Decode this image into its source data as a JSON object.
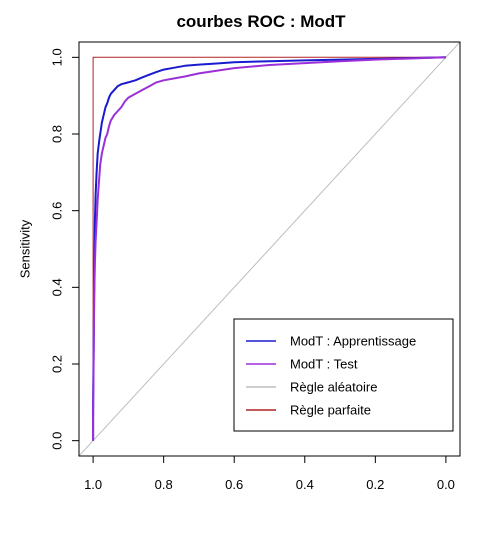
{
  "chart_data": {
    "type": "line",
    "title": "courbes ROC : ModT",
    "xlabel": "",
    "ylabel": "Sensitivity",
    "x_reversed": true,
    "xlim": [
      1.04,
      -0.04
    ],
    "ylim": [
      -0.04,
      1.04
    ],
    "x_ticks": [
      1.0,
      0.8,
      0.6,
      0.4,
      0.2,
      0.0
    ],
    "x_tick_labels": [
      "1.0",
      "0.8",
      "0.6",
      "0.4",
      "0.2",
      "0.0"
    ],
    "y_ticks": [
      0.0,
      0.2,
      0.4,
      0.6,
      0.8,
      1.0
    ],
    "y_tick_labels": [
      "0.0",
      "0.2",
      "0.4",
      "0.6",
      "0.8",
      "1.0"
    ],
    "grid": false,
    "legend": {
      "position": "bottom-right",
      "entries": [
        {
          "label": "ModT : Apprentissage",
          "color": "#1a1ad0"
        },
        {
          "label": "ModT : Test",
          "color": "#9b30d9"
        },
        {
          "label": "Règle aléatoire",
          "color": "#bebebe"
        },
        {
          "label": "Règle parfaite",
          "color": "#b22222"
        }
      ]
    },
    "series": [
      {
        "name": "ModT : Apprentissage",
        "color": "#1a1ad0",
        "width": 2,
        "x": [
          1.0,
          1.0,
          0.995,
          0.993,
          0.99,
          0.987,
          0.983,
          0.98,
          0.975,
          0.97,
          0.965,
          0.96,
          0.955,
          0.95,
          0.94,
          0.93,
          0.92,
          0.9,
          0.88,
          0.86,
          0.84,
          0.82,
          0.8,
          0.77,
          0.74,
          0.7,
          0.65,
          0.6,
          0.5,
          0.4,
          0.3,
          0.2,
          0.1,
          0.0
        ],
        "y": [
          0.0,
          0.1,
          0.57,
          0.64,
          0.7,
          0.75,
          0.78,
          0.8,
          0.83,
          0.85,
          0.87,
          0.88,
          0.895,
          0.905,
          0.915,
          0.925,
          0.93,
          0.935,
          0.94,
          0.948,
          0.955,
          0.962,
          0.968,
          0.973,
          0.978,
          0.981,
          0.984,
          0.987,
          0.99,
          0.992,
          0.994,
          0.996,
          0.998,
          1.0
        ]
      },
      {
        "name": "ModT : Test",
        "color": "#9b30d9",
        "width": 2,
        "x": [
          1.0,
          1.0,
          0.997,
          0.995,
          0.993,
          0.99,
          0.987,
          0.983,
          0.98,
          0.975,
          0.97,
          0.965,
          0.96,
          0.955,
          0.95,
          0.94,
          0.93,
          0.92,
          0.91,
          0.9,
          0.88,
          0.86,
          0.84,
          0.82,
          0.8,
          0.77,
          0.74,
          0.7,
          0.65,
          0.6,
          0.5,
          0.4,
          0.3,
          0.2,
          0.1,
          0.0
        ],
        "y": [
          0.0,
          0.05,
          0.38,
          0.46,
          0.52,
          0.57,
          0.63,
          0.68,
          0.72,
          0.75,
          0.77,
          0.79,
          0.8,
          0.82,
          0.835,
          0.85,
          0.86,
          0.87,
          0.885,
          0.895,
          0.905,
          0.915,
          0.925,
          0.935,
          0.94,
          0.945,
          0.95,
          0.958,
          0.965,
          0.972,
          0.98,
          0.985,
          0.99,
          0.994,
          0.997,
          1.0
        ]
      },
      {
        "name": "Règle aléatoire",
        "color": "#bebebe",
        "width": 1,
        "x": [
          1.04,
          -0.04
        ],
        "y": [
          -0.04,
          1.04
        ]
      },
      {
        "name": "Règle parfaite",
        "color": "#b22222",
        "width": 1,
        "x": [
          1.0,
          1.0,
          0.0
        ],
        "y": [
          0.0,
          1.0,
          1.0
        ]
      }
    ]
  }
}
